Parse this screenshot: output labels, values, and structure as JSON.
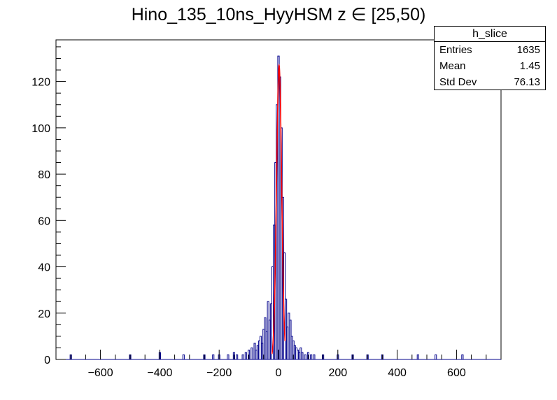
{
  "chart_data": {
    "type": "histogram",
    "title": "Hino_135_10ns_HyyHSM z  ∈ [25,50)",
    "xlabel": "",
    "ylabel": "",
    "xlim": [
      -750,
      750
    ],
    "ylim": [
      0,
      138
    ],
    "xticks": [
      -600,
      -400,
      -200,
      0,
      200,
      400,
      600
    ],
    "yticks": [
      0,
      20,
      40,
      60,
      80,
      100,
      120
    ],
    "grid": false,
    "histogram_color": "#00008b",
    "fit_color": "#ff0000",
    "bins_core": {
      "x": [
        -30,
        -25,
        -20,
        -15,
        -10,
        -5,
        0,
        5,
        10,
        15,
        20,
        25,
        30
      ],
      "values": [
        17,
        24,
        40,
        58,
        85,
        110,
        131,
        122,
        100,
        70,
        46,
        26,
        14
      ]
    },
    "bins_tail": {
      "x": [
        -700,
        -500,
        -400,
        -320,
        -250,
        -220,
        -200,
        -170,
        -150,
        -140,
        -120,
        -110,
        -100,
        -90,
        -80,
        -75,
        -70,
        -65,
        -60,
        -55,
        -50,
        -45,
        -40,
        -35,
        35,
        40,
        45,
        50,
        55,
        60,
        65,
        70,
        75,
        80,
        90,
        100,
        110,
        120,
        150,
        200,
        250,
        300,
        350,
        470,
        530,
        620
      ],
      "values": [
        2,
        2,
        3,
        2,
        2,
        2,
        2,
        2,
        3,
        2,
        2,
        3,
        4,
        5,
        7,
        4,
        6,
        8,
        10,
        7,
        13,
        18,
        12,
        25,
        20,
        17,
        10,
        8,
        6,
        5,
        4,
        3,
        5,
        3,
        2,
        3,
        2,
        2,
        2,
        2,
        2,
        2,
        2,
        2,
        2,
        2
      ]
    },
    "fit": {
      "type": "gaussian",
      "range": [
        -22,
        22
      ],
      "amplitude": 127,
      "mean": 2,
      "sigma": 8.5
    },
    "stats": {
      "name": "h_slice",
      "rows": [
        {
          "label": "Entries",
          "value": "1635"
        },
        {
          "label": "Mean",
          "value": "1.45"
        },
        {
          "label": "Std Dev",
          "value": "76.13"
        }
      ]
    }
  }
}
